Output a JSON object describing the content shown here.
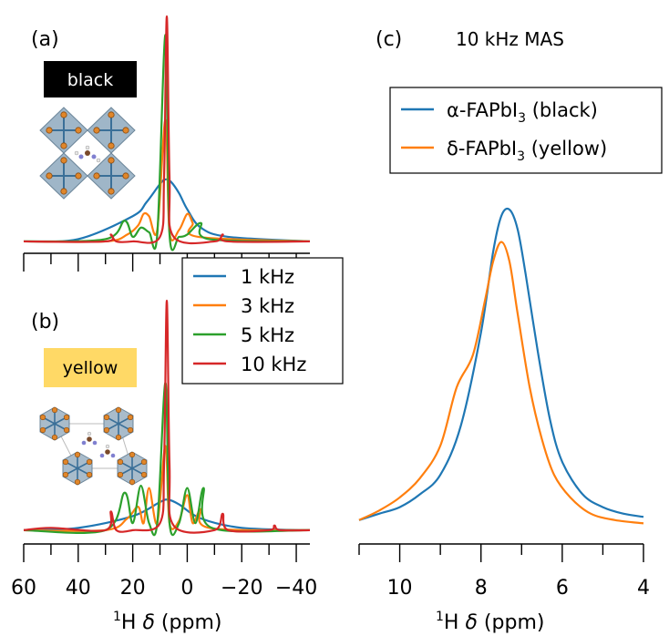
{
  "chart_data": [
    {
      "panel": "(a)",
      "type": "line",
      "inset_label": "black",
      "x_reversed": true,
      "xlim": [
        60,
        -45
      ],
      "series": [
        {
          "name": "1 kHz",
          "color": "#1f77b4",
          "points": [
            [
              60,
              0.02
            ],
            [
              40,
              0.03
            ],
            [
              20,
              0.13
            ],
            [
              15,
              0.19
            ],
            [
              10,
              0.27
            ],
            [
              8,
              0.29
            ],
            [
              6,
              0.28
            ],
            [
              3,
              0.23
            ],
            [
              0,
              0.16
            ],
            [
              -5,
              0.08
            ],
            [
              -15,
              0.04
            ],
            [
              -45,
              0.02
            ]
          ]
        },
        {
          "name": "3 kHz",
          "color": "#ff7f0e",
          "points": [
            [
              60,
              0.02
            ],
            [
              30,
              0.02
            ],
            [
              22,
              0.05
            ],
            [
              18,
              0.09
            ],
            [
              16,
              0.14
            ],
            [
              14,
              0.13
            ],
            [
              11,
              0.07
            ],
            [
              8,
              0.55
            ],
            [
              6.5,
              0.06
            ],
            [
              3,
              0.07
            ],
            [
              0,
              0.14
            ],
            [
              -2,
              0.1
            ],
            [
              -4,
              0.04
            ],
            [
              -45,
              0.02
            ]
          ]
        },
        {
          "name": "5 kHz",
          "color": "#2ca02c",
          "points": [
            [
              60,
              0.02
            ],
            [
              30,
              0.03
            ],
            [
              23,
              0.11
            ],
            [
              20,
              0.04
            ],
            [
              17,
              0.08
            ],
            [
              14,
              0.06
            ],
            [
              11,
              0.05
            ],
            [
              8,
              0.92
            ],
            [
              6.5,
              0.05
            ],
            [
              3,
              0.04
            ],
            [
              0,
              0.05
            ],
            [
              -5,
              0.1
            ],
            [
              -8,
              0.03
            ],
            [
              -45,
              0.02
            ]
          ]
        },
        {
          "name": "10 kHz",
          "color": "#d62728",
          "points": [
            [
              60,
              0.02
            ],
            [
              30,
              0.02
            ],
            [
              28,
              0.05
            ],
            [
              26,
              0.02
            ],
            [
              20,
              0.02
            ],
            [
              10,
              0.04
            ],
            [
              8.5,
              0.3
            ],
            [
              7.5,
              1.0
            ],
            [
              6.5,
              0.3
            ],
            [
              5,
              0.04
            ],
            [
              -10,
              0.02
            ],
            [
              -13,
              0.05
            ],
            [
              -15,
              0.02
            ],
            [
              -45,
              0.02
            ]
          ]
        }
      ]
    },
    {
      "panel": "(b)",
      "type": "line",
      "inset_label": "yellow",
      "x_reversed": true,
      "xlim": [
        60,
        -45
      ],
      "xticklabels": [
        "60",
        "40",
        "20",
        "0",
        "−20",
        "−40"
      ],
      "xlabel": "¹H δ (ppm)",
      "series": [
        {
          "name": "1 kHz",
          "color": "#1f77b4",
          "points": [
            [
              60,
              0.02
            ],
            [
              40,
              0.03
            ],
            [
              20,
              0.08
            ],
            [
              10,
              0.14
            ],
            [
              7,
              0.15
            ],
            [
              3,
              0.13
            ],
            [
              -5,
              0.07
            ],
            [
              -20,
              0.03
            ],
            [
              -45,
              0.02
            ]
          ]
        },
        {
          "name": "3 kHz",
          "color": "#ff7f0e",
          "points": [
            [
              60,
              0.02
            ],
            [
              30,
              0.02
            ],
            [
              22,
              0.07
            ],
            [
              18,
              0.12
            ],
            [
              16,
              0.05
            ],
            [
              14,
              0.2
            ],
            [
              11,
              0.05
            ],
            [
              8,
              0.38
            ],
            [
              6.5,
              0.05
            ],
            [
              3,
              0.06
            ],
            [
              0,
              0.17
            ],
            [
              -2,
              0.05
            ],
            [
              -5,
              0.11
            ],
            [
              -8,
              0.03
            ],
            [
              -45,
              0.02
            ]
          ]
        },
        {
          "name": "5 kHz",
          "color": "#2ca02c",
          "points": [
            [
              60,
              0.02
            ],
            [
              30,
              0.02
            ],
            [
              23,
              0.18
            ],
            [
              20,
              0.05
            ],
            [
              17,
              0.21
            ],
            [
              14,
              0.05
            ],
            [
              11,
              0.05
            ],
            [
              8,
              0.65
            ],
            [
              6.5,
              0.05
            ],
            [
              3,
              0.05
            ],
            [
              0,
              0.2
            ],
            [
              -3,
              0.05
            ],
            [
              -6,
              0.2
            ],
            [
              -9,
              0.03
            ],
            [
              -45,
              0.02
            ]
          ]
        },
        {
          "name": "10 kHz",
          "color": "#d62728",
          "points": [
            [
              60,
              0.02
            ],
            [
              50,
              0.03
            ],
            [
              30,
              0.02
            ],
            [
              28,
              0.1
            ],
            [
              26,
              0.02
            ],
            [
              20,
              0.02
            ],
            [
              10,
              0.05
            ],
            [
              8.5,
              0.3
            ],
            [
              7.5,
              1.0
            ],
            [
              6.5,
              0.3
            ],
            [
              5,
              0.04
            ],
            [
              -10,
              0.02
            ],
            [
              -13,
              0.09
            ],
            [
              -15,
              0.02
            ],
            [
              -30,
              0.02
            ],
            [
              -32,
              0.04
            ],
            [
              -34,
              0.02
            ],
            [
              -45,
              0.02
            ]
          ]
        }
      ]
    },
    {
      "panel": "(c)",
      "type": "line",
      "title": "10 kHz MAS",
      "x_reversed": true,
      "xlim": [
        11,
        4
      ],
      "xticks": [
        10,
        8,
        6,
        4
      ],
      "xticklabels": [
        "10",
        "8",
        "6",
        "4"
      ],
      "xlabel": "¹H δ (ppm)",
      "series": [
        {
          "name": "α-FAPbI₃ (black)",
          "color": "#1f77b4",
          "points": [
            [
              11,
              0.04
            ],
            [
              10.5,
              0.06
            ],
            [
              10,
              0.08
            ],
            [
              9.5,
              0.12
            ],
            [
              9,
              0.18
            ],
            [
              8.5,
              0.33
            ],
            [
              8,
              0.62
            ],
            [
              7.7,
              0.87
            ],
            [
              7.5,
              0.98
            ],
            [
              7.3,
              1.0
            ],
            [
              7.1,
              0.94
            ],
            [
              6.9,
              0.8
            ],
            [
              6.6,
              0.56
            ],
            [
              6.3,
              0.35
            ],
            [
              6,
              0.22
            ],
            [
              5.5,
              0.12
            ],
            [
              5,
              0.08
            ],
            [
              4.5,
              0.06
            ],
            [
              4,
              0.05
            ]
          ]
        },
        {
          "name": "δ-FAPbI₃ (yellow)",
          "color": "#ff7f0e",
          "points": [
            [
              11,
              0.04
            ],
            [
              10.5,
              0.07
            ],
            [
              10,
              0.11
            ],
            [
              9.5,
              0.17
            ],
            [
              9,
              0.27
            ],
            [
              8.6,
              0.45
            ],
            [
              8.2,
              0.55
            ],
            [
              7.9,
              0.72
            ],
            [
              7.7,
              0.84
            ],
            [
              7.5,
              0.9
            ],
            [
              7.3,
              0.84
            ],
            [
              7.1,
              0.68
            ],
            [
              6.8,
              0.45
            ],
            [
              6.5,
              0.29
            ],
            [
              6.2,
              0.18
            ],
            [
              5.8,
              0.11
            ],
            [
              5.3,
              0.06
            ],
            [
              4.7,
              0.04
            ],
            [
              4,
              0.03
            ]
          ]
        }
      ]
    }
  ],
  "panel_labels": {
    "a": "(a)",
    "b": "(b)",
    "c": "(c)"
  },
  "titles": {
    "c": "10 kHz MAS"
  },
  "insets": {
    "black": "black",
    "yellow": "yellow"
  },
  "legend_ab": [
    "1 kHz",
    "3 kHz",
    "5 kHz",
    "10 kHz"
  ],
  "legend_c": {
    "alpha": {
      "prefix": "α-FAPbI",
      "sub": "3",
      "suffix": " (black)"
    },
    "delta": {
      "prefix": "δ-FAPbI",
      "sub": "3",
      "suffix": " (yellow)"
    }
  },
  "axis_ab": {
    "ticklabels": [
      "60",
      "40",
      "20",
      "0",
      "−20",
      "−40"
    ],
    "xlabel_sup": "1",
    "xlabel_main": "H ",
    "xlabel_delta": "δ",
    "xlabel_unit": " (ppm)"
  },
  "axis_c": {
    "ticklabels": [
      "10",
      "8",
      "6",
      "4"
    ],
    "xlabel_sup": "1",
    "xlabel_main": "H ",
    "xlabel_delta": "δ",
    "xlabel_unit": " (ppm)"
  }
}
